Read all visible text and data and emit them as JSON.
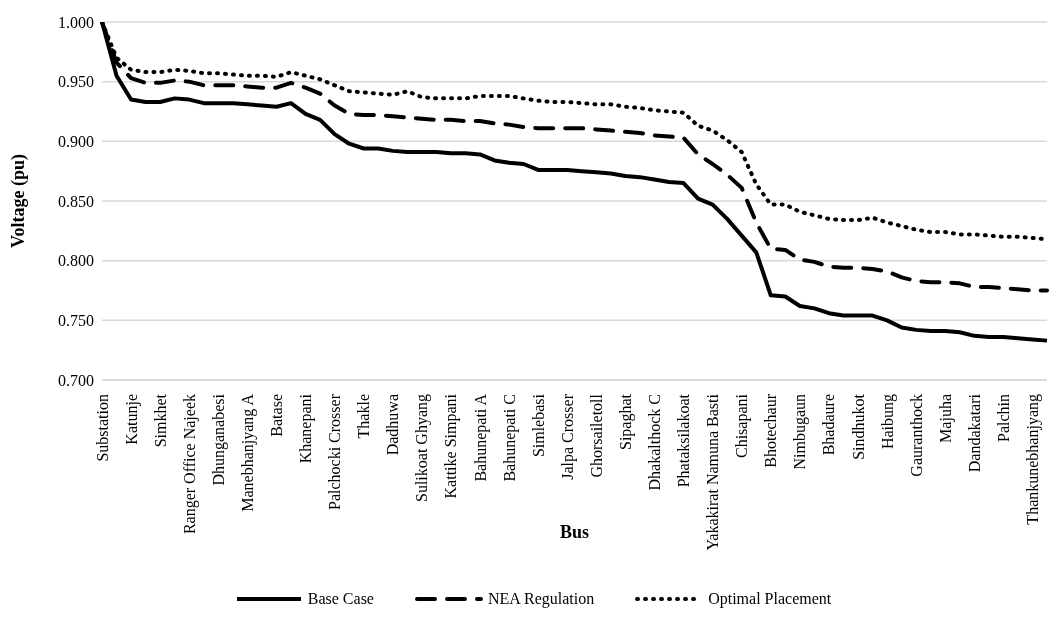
{
  "chart_data": {
    "type": "line",
    "xlabel": "Bus",
    "ylabel": "Voltage (pu)",
    "categories": [
      "Substation",
      null,
      "Katunje",
      null,
      "Simkhet",
      null,
      "Ranger Office Najeek",
      null,
      "Dhunganabesi",
      null,
      "Manebhanjyang A",
      null,
      "Batase",
      null,
      "Khanepani",
      null,
      "Palchocki Crosser",
      null,
      "Thakle",
      null,
      "Dadhuwa",
      null,
      "Sulikoat Ghyang",
      null,
      "Kattike Simpani",
      null,
      "Bahunepati A",
      null,
      "Bahunepati C",
      null,
      "Simlebasi",
      null,
      "Jalpa Crosser",
      null,
      "Ghorsailetoll",
      null,
      "Sipaghat",
      null,
      "Dhakalthock C",
      null,
      "Phataksilakoat",
      null,
      "Yakakirat Namuna Basti",
      null,
      "Chisapani",
      null,
      "Bhotechaur",
      null,
      "Nimbugaun",
      null,
      "Bhadaure",
      null,
      "Sindhukot",
      null,
      "Haibung",
      null,
      "Gauranthock",
      null,
      "Majuha",
      null,
      "Dandakatari",
      null,
      "Palchin",
      null,
      "Thankunebhanjyang",
      null
    ],
    "series": [
      {
        "name": "Base Case",
        "color": "#000000",
        "line_style": "solid",
        "values": [
          1.0,
          0.955,
          0.935,
          0.933,
          0.933,
          0.936,
          0.935,
          0.932,
          0.932,
          0.932,
          0.931,
          0.93,
          0.929,
          0.932,
          0.923,
          0.918,
          0.906,
          0.898,
          0.894,
          0.894,
          0.892,
          0.891,
          0.891,
          0.891,
          0.89,
          0.89,
          0.889,
          0.884,
          0.882,
          0.881,
          0.876,
          0.876,
          0.876,
          0.875,
          0.874,
          0.873,
          0.871,
          0.87,
          0.868,
          0.866,
          0.865,
          0.852,
          0.847,
          0.835,
          0.821,
          0.807,
          0.771,
          0.77,
          0.762,
          0.76,
          0.756,
          0.754,
          0.754,
          0.754,
          0.75,
          0.744,
          0.742,
          0.741,
          0.741,
          0.74,
          0.737,
          0.736,
          0.736,
          0.735,
          0.734,
          0.733
        ]
      },
      {
        "name": "NEA Regulation",
        "color": "#000000",
        "line_style": "dashed",
        "values": [
          1.0,
          0.966,
          0.953,
          0.949,
          0.949,
          0.951,
          0.95,
          0.947,
          0.947,
          0.947,
          0.946,
          0.945,
          0.945,
          0.949,
          0.945,
          0.94,
          0.93,
          0.923,
          0.922,
          0.922,
          0.921,
          0.92,
          0.919,
          0.918,
          0.918,
          0.917,
          0.917,
          0.915,
          0.914,
          0.912,
          0.911,
          0.911,
          0.911,
          0.911,
          0.91,
          0.909,
          0.908,
          0.907,
          0.905,
          0.904,
          0.903,
          0.889,
          0.881,
          0.872,
          0.861,
          0.832,
          0.81,
          0.809,
          0.801,
          0.799,
          0.795,
          0.794,
          0.794,
          0.793,
          0.791,
          0.786,
          0.783,
          0.782,
          0.782,
          0.781,
          0.778,
          0.778,
          0.777,
          0.776,
          0.775,
          0.775
        ]
      },
      {
        "name": "Optimal Placement",
        "color": "#000000",
        "line_style": "dotted",
        "values": [
          1.0,
          0.97,
          0.96,
          0.958,
          0.958,
          0.96,
          0.959,
          0.957,
          0.957,
          0.956,
          0.955,
          0.955,
          0.954,
          0.958,
          0.955,
          0.952,
          0.947,
          0.942,
          0.941,
          0.94,
          0.939,
          0.942,
          0.937,
          0.936,
          0.936,
          0.936,
          0.938,
          0.938,
          0.938,
          0.936,
          0.934,
          0.933,
          0.933,
          0.932,
          0.931,
          0.931,
          0.929,
          0.928,
          0.926,
          0.925,
          0.924,
          0.913,
          0.909,
          0.901,
          0.891,
          0.864,
          0.847,
          0.847,
          0.841,
          0.838,
          0.835,
          0.834,
          0.834,
          0.836,
          0.832,
          0.829,
          0.826,
          0.824,
          0.824,
          0.822,
          0.822,
          0.821,
          0.82,
          0.82,
          0.819,
          0.818
        ]
      }
    ],
    "ylim": [
      0.7,
      1.0
    ],
    "yticks": [
      {
        "value": 0.7,
        "label": "0.700"
      },
      {
        "value": 0.75,
        "label": "0.750"
      },
      {
        "value": 0.8,
        "label": "0.800"
      },
      {
        "value": 0.85,
        "label": "0.850"
      },
      {
        "value": 0.9,
        "label": "0.900"
      },
      {
        "value": 0.95,
        "label": "0.950"
      },
      {
        "value": 1.0,
        "label": "1.000"
      }
    ],
    "grid": "y",
    "legend": "bottom",
    "marker": "none"
  }
}
